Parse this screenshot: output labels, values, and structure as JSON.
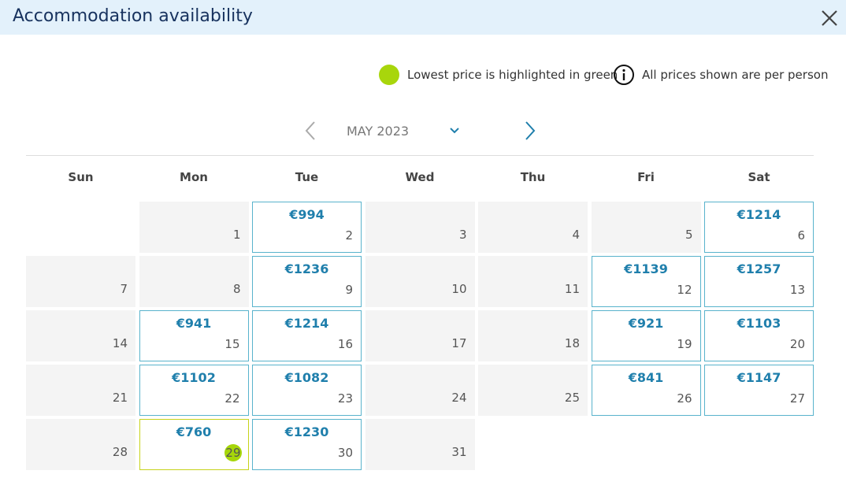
{
  "header": {
    "title": "Accommodation availability"
  },
  "legend": {
    "green_note": "Lowest price is highlighted in green",
    "info_note": "All prices shown are per person"
  },
  "calendar": {
    "month": "MAY 2023",
    "weekdays": [
      "Sun",
      "Mon",
      "Tue",
      "Wed",
      "Thu",
      "Fri",
      "Sat"
    ],
    "weeks": [
      [
        null,
        {
          "day": 1
        },
        {
          "day": 2,
          "price": "€994"
        },
        {
          "day": 3
        },
        {
          "day": 4
        },
        {
          "day": 5
        },
        {
          "day": 6,
          "price": "€1214"
        }
      ],
      [
        {
          "day": 7
        },
        {
          "day": 8
        },
        {
          "day": 9,
          "price": "€1236"
        },
        {
          "day": 10
        },
        {
          "day": 11
        },
        {
          "day": 12,
          "price": "€1139"
        },
        {
          "day": 13,
          "price": "€1257"
        }
      ],
      [
        {
          "day": 14
        },
        {
          "day": 15,
          "price": "€941"
        },
        {
          "day": 16,
          "price": "€1214"
        },
        {
          "day": 17
        },
        {
          "day": 18
        },
        {
          "day": 19,
          "price": "€921"
        },
        {
          "day": 20,
          "price": "€1103"
        }
      ],
      [
        {
          "day": 21
        },
        {
          "day": 22,
          "price": "€1102"
        },
        {
          "day": 23,
          "price": "€1082"
        },
        {
          "day": 24
        },
        {
          "day": 25
        },
        {
          "day": 26,
          "price": "€841"
        },
        {
          "day": 27,
          "price": "€1147"
        }
      ],
      [
        {
          "day": 28
        },
        {
          "day": 29,
          "price": "€760",
          "lowest": true
        },
        {
          "day": 30,
          "price": "€1230"
        },
        {
          "day": 31
        }
      ]
    ]
  }
}
